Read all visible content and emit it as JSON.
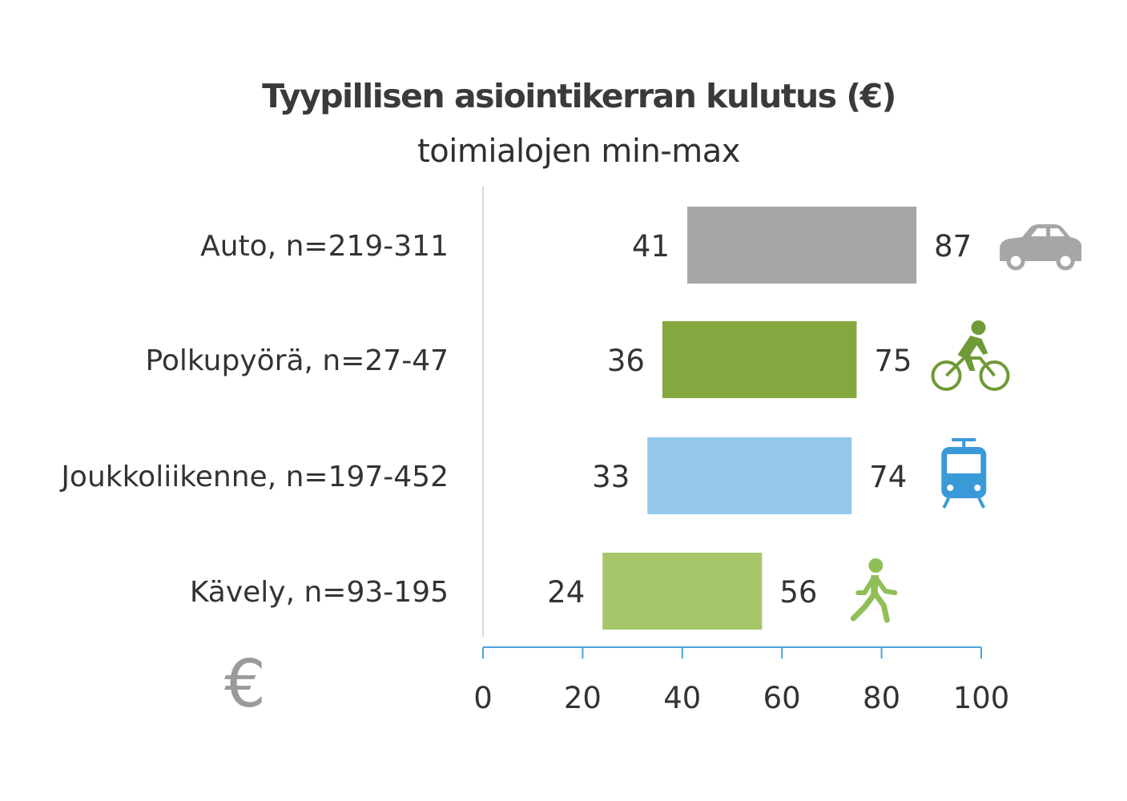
{
  "chart_data": {
    "type": "bar",
    "subtype": "floating-range-horizontal",
    "title": "Tyypillisen asiointikerran kulutus (€)",
    "subtitle": "toimialojen min-max",
    "categories": [
      "Auto, n=219-311",
      "Polkupyörä, n=27-47",
      "Joukkoliikenne, n=197-452",
      "Kävely, n=93-195"
    ],
    "series": [
      {
        "min_values": [
          41,
          36,
          33,
          24
        ],
        "max_values": [
          87,
          75,
          74,
          56
        ]
      }
    ],
    "bar_colors": [
      "#a6a6a6",
      "#84a83f",
      "#93c8ea",
      "#a6c66a"
    ],
    "icons": [
      "car-icon",
      "bicycle-icon",
      "tram-icon",
      "walking-icon"
    ],
    "icon_colors": [
      "#a6a6a6",
      "#6f9a37",
      "#3a9ad8",
      "#8fbf57"
    ],
    "xlim": [
      0,
      100
    ],
    "x_ticks": [
      0,
      20,
      40,
      60,
      80,
      100
    ],
    "axis_color": "#4aa3d8",
    "grid": false,
    "legend": "none",
    "corner_symbol": "€"
  }
}
